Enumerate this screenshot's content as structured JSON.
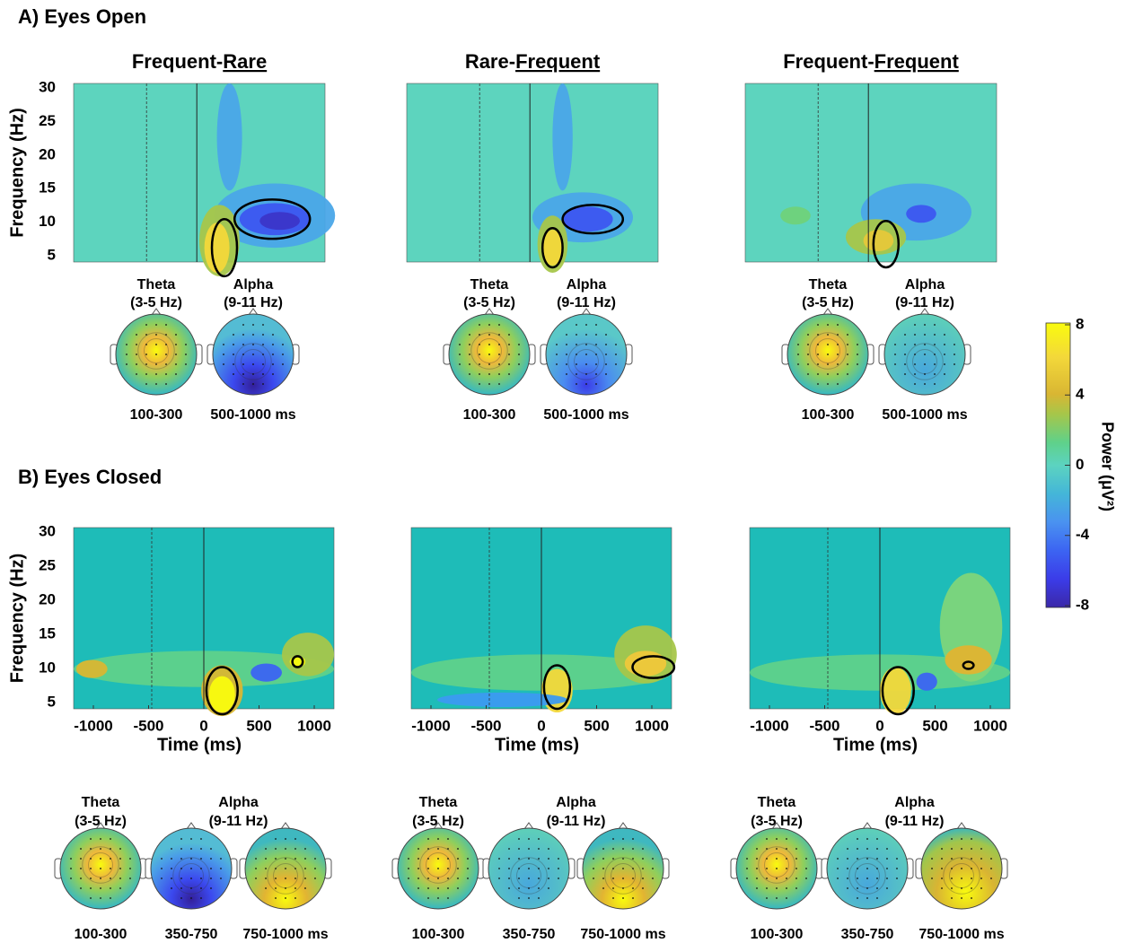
{
  "colorbar": {
    "ticks": [
      8,
      4,
      0,
      -4,
      -8
    ],
    "label": "Power (μV²)"
  },
  "sections": [
    {
      "label": "A) Eyes Open",
      "y_axis_label": "Frequency (Hz)",
      "yticks": [
        30,
        25,
        20,
        15,
        10,
        5
      ],
      "panels": [
        {
          "title": {
            "prefix": "Frequent-",
            "underlined": "Rare"
          },
          "topo_groups": [
            {
              "name": "Theta",
              "band": "(3-5 Hz)",
              "windows": [
                "100-300"
              ]
            },
            {
              "name": "Alpha",
              "band": "(9-11 Hz)",
              "windows": [
                "500-1000 ms"
              ]
            }
          ]
        },
        {
          "title": {
            "prefix": "Rare-",
            "underlined": "Frequent"
          },
          "topo_groups": [
            {
              "name": "Theta",
              "band": "(3-5 Hz)",
              "windows": [
                "100-300"
              ]
            },
            {
              "name": "Alpha",
              "band": "(9-11 Hz)",
              "windows": [
                "500-1000 ms"
              ]
            }
          ]
        },
        {
          "title": {
            "prefix": "Frequent-",
            "underlined": "Frequent"
          },
          "topo_groups": [
            {
              "name": "Theta",
              "band": "(3-5 Hz)",
              "windows": [
                "100-300"
              ]
            },
            {
              "name": "Alpha",
              "band": "(9-11 Hz)",
              "windows": [
                "500-1000 ms"
              ]
            }
          ]
        }
      ]
    },
    {
      "label": "B) Eyes Closed",
      "y_axis_label": "Frequency (Hz)",
      "yticks": [
        30,
        25,
        20,
        15,
        10,
        5
      ],
      "x_axis_label": "Time (ms)",
      "xticks": [
        -1000,
        -500,
        0,
        500,
        1000
      ],
      "panels": [
        {
          "topo_groups": [
            {
              "name": "Theta",
              "band": "(3-5 Hz)",
              "windows": [
                "100-300"
              ]
            },
            {
              "name": "Alpha",
              "band": "(9-11 Hz)",
              "windows": [
                "350-750",
                "750-1000 ms"
              ]
            }
          ]
        },
        {
          "topo_groups": [
            {
              "name": "Theta",
              "band": "(3-5 Hz)",
              "windows": [
                "100-300"
              ]
            },
            {
              "name": "Alpha",
              "band": "(9-11 Hz)",
              "windows": [
                "350-750",
                "750-1000 ms"
              ]
            }
          ]
        },
        {
          "topo_groups": [
            {
              "name": "Theta",
              "band": "(3-5 Hz)",
              "windows": [
                "100-300"
              ]
            },
            {
              "name": "Alpha",
              "band": "(9-11 Hz)",
              "windows": [
                "350-750",
                "750-1000 ms"
              ]
            }
          ]
        }
      ]
    }
  ]
}
